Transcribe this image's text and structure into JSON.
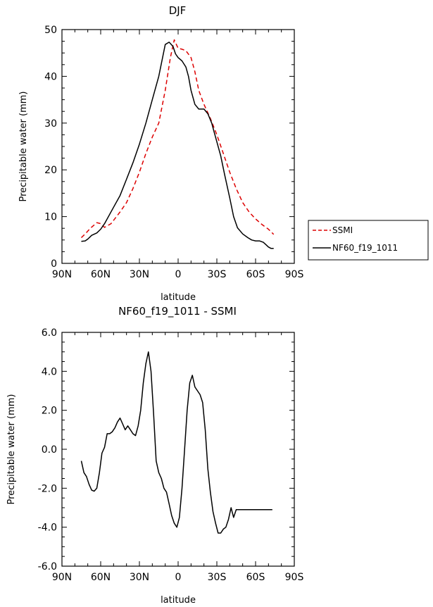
{
  "chart_data": [
    {
      "type": "line",
      "title": "DJF",
      "xlabel": "latitude",
      "ylabel": "Precipitable water (mm)",
      "xlim": [
        90,
        -90
      ],
      "ylim": [
        0,
        50
      ],
      "x_ticks": [
        90,
        60,
        30,
        0,
        -30,
        -60,
        -90
      ],
      "x_tick_labels": [
        "90N",
        "60N",
        "30N",
        "0",
        "30S",
        "60S",
        "90S"
      ],
      "y_ticks": [
        0,
        10,
        20,
        30,
        40,
        50
      ],
      "y_tick_labels": [
        "0",
        "10",
        "20",
        "30",
        "40",
        "50"
      ],
      "legend": {
        "position": "right",
        "entries": [
          "SSMI",
          "NF60_f19_1011"
        ]
      },
      "series": [
        {
          "name": "SSMI",
          "color": "#dd0000",
          "dash": "dashed",
          "x": [
            75,
            72,
            68,
            63,
            60,
            57,
            52,
            45,
            40,
            35,
            30,
            25,
            20,
            15,
            10,
            6,
            3,
            0,
            -3,
            -6,
            -10,
            -13,
            -16,
            -20,
            -25,
            -30,
            -35,
            -40,
            -45,
            -50,
            -55,
            -60,
            -65,
            -70,
            -74
          ],
          "y": [
            5.5,
            6.3,
            7.5,
            8.7,
            8.5,
            7.7,
            8.5,
            11,
            13,
            16,
            19.5,
            23.5,
            27,
            30,
            37,
            44,
            47.8,
            46,
            45.8,
            45.5,
            44,
            41,
            37,
            34,
            31,
            27.5,
            23.5,
            19.5,
            16,
            13,
            11,
            9.5,
            8.3,
            7.3,
            6.2
          ]
        },
        {
          "name": "NF60_f19_1011",
          "color": "#000000",
          "dash": "solid",
          "x": [
            75,
            72,
            70,
            67,
            63,
            60,
            57,
            53,
            50,
            45,
            40,
            35,
            30,
            25,
            20,
            15,
            10,
            7,
            4,
            2,
            0,
            -3,
            -6,
            -8,
            -10,
            -13,
            -16,
            -18,
            -20,
            -23,
            -26,
            -28,
            -30,
            -33,
            -36,
            -40,
            -43,
            -46,
            -50,
            -54,
            -57,
            -60,
            -63,
            -66,
            -68,
            -70,
            -72,
            -74
          ],
          "y": [
            4.7,
            4.8,
            5.2,
            6,
            6.5,
            7.3,
            8.5,
            10.5,
            12,
            14.5,
            18,
            21.5,
            25.5,
            30,
            35,
            40,
            46.8,
            47.3,
            46.4,
            44.8,
            44,
            43.3,
            42,
            40,
            37,
            34,
            33,
            33,
            33,
            32,
            30,
            28,
            26,
            23,
            19,
            14,
            10,
            7.6,
            6.3,
            5.5,
            5,
            4.8,
            4.8,
            4.5,
            4,
            3.5,
            3.2,
            3.2
          ]
        }
      ]
    },
    {
      "type": "line",
      "title": "NF60_f19_1011 - SSMI",
      "xlabel": "latitude",
      "ylabel": "Precipitable water (mm)",
      "xlim": [
        90,
        -90
      ],
      "ylim": [
        -6,
        6
      ],
      "x_ticks": [
        90,
        60,
        30,
        0,
        -30,
        -60,
        -90
      ],
      "x_tick_labels": [
        "90N",
        "60N",
        "30N",
        "0",
        "30S",
        "60S",
        "90S"
      ],
      "y_ticks": [
        -6,
        -4,
        -2,
        0,
        2,
        4,
        6
      ],
      "y_tick_labels": [
        "-6.0",
        "-4.0",
        "-2.0",
        "0.0",
        "2.0",
        "4.0",
        "6.0"
      ],
      "series": [
        {
          "name": "NF60_f19_1011 - SSMI",
          "color": "#000000",
          "dash": "solid",
          "x": [
            75,
            73,
            71,
            69,
            67,
            65,
            63,
            61,
            59,
            57,
            55,
            53,
            51,
            49,
            47,
            45,
            43,
            41,
            39,
            37,
            35,
            33,
            31,
            29,
            27,
            25,
            23,
            21,
            19,
            17,
            15,
            13,
            11,
            9,
            7,
            5,
            3,
            1,
            -1,
            -3,
            -5,
            -7,
            -9,
            -11,
            -13,
            -15,
            -17,
            -19,
            -21,
            -23,
            -25,
            -27,
            -29,
            -31,
            -33,
            -35,
            -37,
            -39,
            -41,
            -43,
            -45,
            -47,
            -49,
            -51,
            -53,
            -55,
            -57,
            -59,
            -61,
            -63,
            -65,
            -67,
            -69,
            -71,
            -73
          ],
          "y": [
            -0.6,
            -1.2,
            -1.4,
            -1.8,
            -2.1,
            -2.15,
            -2.0,
            -1.2,
            -0.2,
            0.1,
            0.8,
            0.8,
            0.9,
            1.1,
            1.4,
            1.6,
            1.3,
            1.0,
            1.2,
            1.0,
            0.8,
            0.7,
            1.2,
            2.0,
            3.4,
            4.4,
            5.0,
            4.0,
            1.8,
            -0.6,
            -1.2,
            -1.5,
            -2.0,
            -2.2,
            -2.8,
            -3.4,
            -3.8,
            -4.0,
            -3.5,
            -2.0,
            0.0,
            2.0,
            3.4,
            3.8,
            3.2,
            3.0,
            2.8,
            2.4,
            1.0,
            -1.0,
            -2.2,
            -3.2,
            -3.8,
            -4.3,
            -4.3,
            -4.1,
            -4.0,
            -3.6,
            -3.0,
            -3.5,
            -3.1,
            -3.1,
            -3.1,
            -3.1,
            -3.1,
            -3.1,
            -3.1,
            -3.1,
            -3.1,
            -3.1,
            -3.1,
            -3.1,
            -3.1,
            -3.1,
            -3.1
          ]
        }
      ]
    }
  ]
}
